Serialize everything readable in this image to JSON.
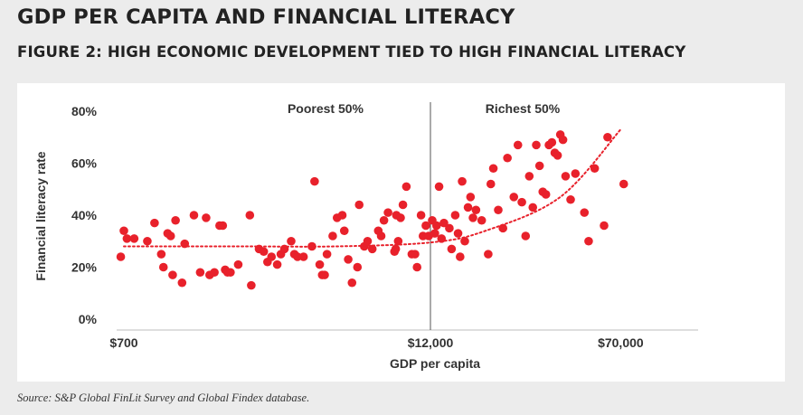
{
  "header": {
    "title": "GDP PER CAPITA AND FINANCIAL LITERACY",
    "subtitle": "FIGURE 2: HIGH ECONOMIC DEVELOPMENT TIED TO HIGH FINANCIAL LITERACY"
  },
  "footer": {
    "source": "Source: S&P Global FinLit Survey and Global Findex database."
  },
  "colors": {
    "point": "#e8212b",
    "trend": "#e8212b",
    "divider": "#555555",
    "axis": "#bdbdbd"
  },
  "chart_data": {
    "type": "scatter",
    "title": "",
    "xlabel": "GDP per capita",
    "ylabel": "Financial literacy rate",
    "x_scale": "log",
    "xlim": [
      600,
      130000
    ],
    "ylim": [
      0,
      80
    ],
    "x_ticks": [
      700,
      12000,
      70000
    ],
    "x_tick_labels": [
      "$700",
      "$12,000",
      "$70,000"
    ],
    "y_ticks": [
      0,
      20,
      40,
      60,
      80
    ],
    "y_tick_labels": [
      "0%",
      "20%",
      "40%",
      "60%",
      "80%"
    ],
    "grid": false,
    "legend": "none",
    "divider_x": 12000,
    "region_labels": [
      "Poorest 50%",
      "Richest 50%"
    ],
    "trend": {
      "style": "dotted",
      "points": [
        [
          700,
          28
        ],
        [
          2000,
          28
        ],
        [
          5000,
          28
        ],
        [
          12000,
          29.5
        ],
        [
          20000,
          34
        ],
        [
          40000,
          47
        ],
        [
          70000,
          73
        ]
      ]
    },
    "points": [
      [
        700,
        34
      ],
      [
        720,
        31
      ],
      [
        680,
        24
      ],
      [
        770,
        31
      ],
      [
        870,
        30
      ],
      [
        930,
        37
      ],
      [
        990,
        25
      ],
      [
        1010,
        20
      ],
      [
        1050,
        33
      ],
      [
        1080,
        32
      ],
      [
        1100,
        17
      ],
      [
        1130,
        38
      ],
      [
        1200,
        14
      ],
      [
        1230,
        29
      ],
      [
        1340,
        40
      ],
      [
        1420,
        18
      ],
      [
        1500,
        39
      ],
      [
        1550,
        17
      ],
      [
        1620,
        18
      ],
      [
        1700,
        36
      ],
      [
        1750,
        36
      ],
      [
        1790,
        19
      ],
      [
        1830,
        18
      ],
      [
        1880,
        18
      ],
      [
        2020,
        21
      ],
      [
        2250,
        40
      ],
      [
        2280,
        13
      ],
      [
        2450,
        27
      ],
      [
        2560,
        26
      ],
      [
        2650,
        22
      ],
      [
        2750,
        24
      ],
      [
        2900,
        21
      ],
      [
        3000,
        25
      ],
      [
        3100,
        27
      ],
      [
        3300,
        30
      ],
      [
        3400,
        25
      ],
      [
        3500,
        24
      ],
      [
        3700,
        24
      ],
      [
        4000,
        28
      ],
      [
        4100,
        53
      ],
      [
        4300,
        21
      ],
      [
        4400,
        17
      ],
      [
        4500,
        17
      ],
      [
        4600,
        25
      ],
      [
        4850,
        32
      ],
      [
        5050,
        39
      ],
      [
        5300,
        40
      ],
      [
        5400,
        34
      ],
      [
        5600,
        23
      ],
      [
        5800,
        14
      ],
      [
        6100,
        20
      ],
      [
        6200,
        44
      ],
      [
        6500,
        28
      ],
      [
        6700,
        30
      ],
      [
        7000,
        27
      ],
      [
        7400,
        34
      ],
      [
        7600,
        32
      ],
      [
        7800,
        38
      ],
      [
        8100,
        41
      ],
      [
        8600,
        26
      ],
      [
        8700,
        27
      ],
      [
        8750,
        40
      ],
      [
        8900,
        30
      ],
      [
        9100,
        39
      ],
      [
        9300,
        44
      ],
      [
        9600,
        51
      ],
      [
        10100,
        25
      ],
      [
        10400,
        25
      ],
      [
        10600,
        20
      ],
      [
        11000,
        40
      ],
      [
        11200,
        32
      ],
      [
        11500,
        36
      ],
      [
        11800,
        32
      ],
      [
        12200,
        38
      ],
      [
        12500,
        33
      ],
      [
        12700,
        36
      ],
      [
        13000,
        51
      ],
      [
        13300,
        31
      ],
      [
        13600,
        37
      ],
      [
        14300,
        35
      ],
      [
        14600,
        27
      ],
      [
        15100,
        40
      ],
      [
        15500,
        33
      ],
      [
        15800,
        24
      ],
      [
        16100,
        53
      ],
      [
        16500,
        30
      ],
      [
        17000,
        43
      ],
      [
        17400,
        47
      ],
      [
        17800,
        39
      ],
      [
        18300,
        42
      ],
      [
        19300,
        38
      ],
      [
        20500,
        25
      ],
      [
        21000,
        52
      ],
      [
        21500,
        58
      ],
      [
        22500,
        42
      ],
      [
        23500,
        35
      ],
      [
        24500,
        62
      ],
      [
        26000,
        47
      ],
      [
        27000,
        67
      ],
      [
        28000,
        45
      ],
      [
        29000,
        32
      ],
      [
        30000,
        55
      ],
      [
        31000,
        43
      ],
      [
        32000,
        67
      ],
      [
        33000,
        59
      ],
      [
        34000,
        49
      ],
      [
        35000,
        48
      ],
      [
        36000,
        67
      ],
      [
        37000,
        68
      ],
      [
        38000,
        64
      ],
      [
        39000,
        63
      ],
      [
        40000,
        71
      ],
      [
        41000,
        69
      ],
      [
        42000,
        55
      ],
      [
        44000,
        46
      ],
      [
        46000,
        56
      ],
      [
        50000,
        41
      ],
      [
        52000,
        30
      ],
      [
        55000,
        58
      ],
      [
        62000,
        70
      ],
      [
        60000,
        36
      ],
      [
        72000,
        52
      ]
    ]
  }
}
